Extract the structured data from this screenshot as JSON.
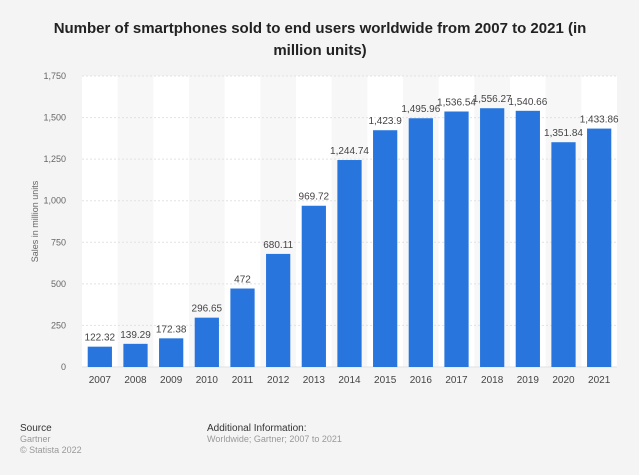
{
  "chart_data": {
    "type": "bar",
    "title": "Number of smartphones sold to end users worldwide from 2007 to 2021 (in million units)",
    "xlabel": "",
    "ylabel": "Sales in million units",
    "categories": [
      "2007",
      "2008",
      "2009",
      "2010",
      "2011",
      "2012",
      "2013",
      "2014",
      "2015",
      "2016",
      "2017",
      "2018",
      "2019",
      "2020",
      "2021"
    ],
    "values": [
      122.32,
      139.29,
      172.38,
      296.65,
      472,
      680.11,
      969.72,
      1244.74,
      1423.9,
      1495.96,
      1536.54,
      1556.27,
      1540.66,
      1351.84,
      1433.86
    ],
    "data_labels": [
      "122.32",
      "139.29",
      "172.38",
      "296.65",
      "472",
      "680.11",
      "969.72",
      "1,244.74",
      "1,423.9",
      "1,495.96",
      "1,536.54",
      "1,556.27",
      "1,540.66",
      "1,351.84",
      "1,433.86"
    ],
    "ylim": [
      0,
      1750
    ],
    "yticks": [
      0,
      250,
      500,
      750,
      1000,
      1250,
      1500,
      1750
    ],
    "ytick_labels": [
      "0",
      "250",
      "500",
      "750",
      "1,000",
      "1,250",
      "1,500",
      "1,750"
    ],
    "grid": true,
    "bar_color": "#2876dd"
  },
  "footer": {
    "source_label": "Source",
    "source": "Gartner",
    "copyright": "© Statista 2022",
    "info_label": "Additional Information:",
    "info": "Worldwide; Gartner; 2007 to 2021"
  }
}
